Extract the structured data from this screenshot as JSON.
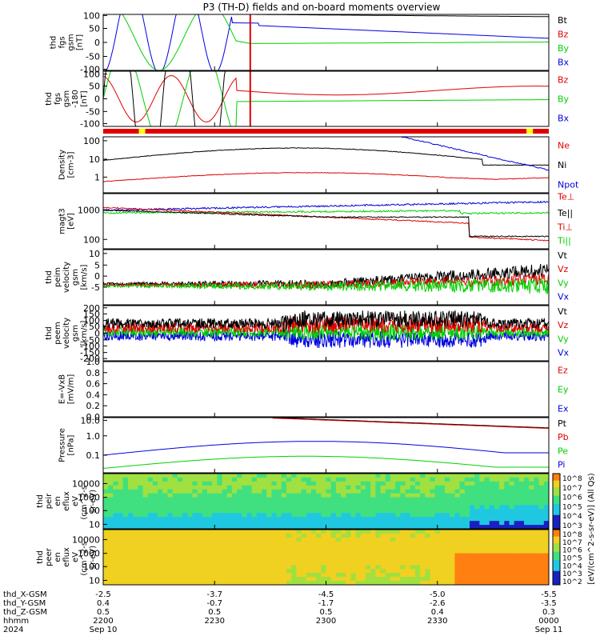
{
  "title": "P3 (TH-D) fields and on-board moments overview",
  "colors": {
    "black": "#000000",
    "red": "#e00000",
    "green": "#00d000",
    "blue": "#0000e0",
    "yellow": "#ffff00"
  },
  "chart_data": [
    {
      "type": "line",
      "id": "fgs_gsm",
      "ylabel_lines": [
        "thd",
        "fgs",
        "gsm",
        "[nT]"
      ],
      "ylim": [
        -100,
        100
      ],
      "yticks": [
        "100",
        "50",
        "0",
        "-50",
        "-100"
      ],
      "legend": [
        "Bt",
        "Bz",
        "By",
        "Bx"
      ],
      "legend_colors": [
        "#000000",
        "#e00000",
        "#00d000",
        "#0000e0"
      ]
    },
    {
      "type": "line",
      "id": "fgs_gsm_lim",
      "ylabel_lines": [
        "thd",
        "fgs",
        "gsm",
        "-180",
        "[nT]"
      ],
      "ylim": [
        -120,
        100
      ],
      "yticks": [
        "100",
        "50",
        "0",
        "-50",
        "-100"
      ],
      "legend": [
        "Bz",
        "By",
        "Bx"
      ],
      "legend_colors": [
        "#e00000",
        "#00d000",
        "#0000e0"
      ]
    },
    {
      "type": "line",
      "id": "density",
      "scale": "log",
      "ylabel_lines": [
        "Density",
        "[cm-3]"
      ],
      "ylim": [
        0.3,
        120
      ],
      "yticks": [
        "100",
        "10",
        "1"
      ],
      "legend": [
        "Ne",
        "Ni",
        "Npot"
      ],
      "legend_colors": [
        "#e00000",
        "#000000",
        "#0000e0"
      ]
    },
    {
      "type": "line",
      "id": "temperature",
      "scale": "log",
      "ylabel_lines": [
        "magt3",
        "[eV]"
      ],
      "ylim": [
        50,
        3000
      ],
      "yticks": [
        "1000",
        "100"
      ],
      "legend": [
        "Te⊥",
        "Te||",
        "Ti⊥",
        "Ti||"
      ],
      "legend_colors": [
        "#e00000",
        "#000000",
        "#e00000",
        "#00d000"
      ]
    },
    {
      "type": "line",
      "id": "peim_velocity",
      "ylabel_lines": [
        "thd",
        "peim",
        "velocity",
        "gsm",
        "[km/s]"
      ],
      "ylim": [
        -5,
        12
      ],
      "yticks": [
        "10",
        "5",
        "0",
        "-5"
      ],
      "legend": [
        "Vt",
        "Vz",
        "Vy",
        "Vx"
      ],
      "legend_colors": [
        "#000000",
        "#e00000",
        "#00d000",
        "#0000e0"
      ]
    },
    {
      "type": "line",
      "id": "peem_velocity",
      "ylabel_lines": [
        "thd",
        "peem",
        "velocity",
        "gsm",
        "[km/s]"
      ],
      "ylim": [
        -200,
        230
      ],
      "yticks": [
        "200",
        "150",
        "100",
        "50",
        "0",
        "-50",
        "-100",
        "-150",
        "-200"
      ],
      "legend": [
        "Vt",
        "Vz",
        "Vy",
        "Vx"
      ],
      "legend_colors": [
        "#000000",
        "#e00000",
        "#00d000",
        "#0000e0"
      ]
    },
    {
      "type": "line",
      "id": "efield",
      "ylabel_lines": [
        "E=-VxB",
        "[mV/m]"
      ],
      "ylim": [
        0,
        1
      ],
      "yticks": [
        "1.0",
        "0.8",
        "0.6",
        "0.4",
        "0.2",
        "0.0"
      ],
      "legend": [
        "Ez",
        "Ey",
        "Ex"
      ],
      "legend_colors": [
        "#e00000",
        "#00d000",
        "#0000e0"
      ]
    },
    {
      "type": "line",
      "id": "pressure",
      "scale": "log",
      "ylabel_lines": [
        "Pressure",
        "[nPa]"
      ],
      "ylim": [
        0.05,
        30
      ],
      "yticks": [
        "10.0",
        "1.0",
        "0.1"
      ],
      "legend": [
        "Pt",
        "Pb",
        "Pe",
        "Pi"
      ],
      "legend_colors": [
        "#000000",
        "#e00000",
        "#00d000",
        "#0000e0"
      ]
    },
    {
      "type": "heatmap",
      "id": "peir_eflux",
      "scale": "log",
      "ylabel_lines": [
        "thd",
        "peir",
        "en",
        "eflux",
        "eV",
        "(cm^2-s-",
        "sr-eV)"
      ],
      "yticks": [
        "10000",
        "1000",
        "100",
        "10"
      ]
    },
    {
      "type": "heatmap",
      "id": "peer_eflux",
      "scale": "log",
      "ylabel_lines": [
        "thd",
        "peer",
        "en",
        "eflux",
        "eV",
        "(cm^2-s-",
        "sr-eV)"
      ],
      "yticks": [
        "10000",
        "1000",
        "100",
        "10"
      ]
    }
  ],
  "colorbar_top": {
    "ticks": [
      "10^8",
      "10^7",
      "10^6",
      "10^5",
      "10^4",
      "10^3"
    ]
  },
  "colorbar_bottom": {
    "ticks": [
      "10^8",
      "10^7",
      "10^6",
      "10^5",
      "10^4",
      "10^3",
      "10^2"
    ]
  },
  "colorbar_label": "[eV/(cm^2-s-sr-eV)] (All Qs)",
  "time_axis": {
    "rows": [
      {
        "label": "thd_X-GSM",
        "values": [
          "-2.5",
          "-3.7",
          "-4.5",
          "-5.0",
          "-5.5"
        ]
      },
      {
        "label": "thd_Y-GSM",
        "values": [
          "0.4",
          "-0.7",
          "-1.7",
          "-2.6",
          "-3.5"
        ]
      },
      {
        "label": "thd_Z-GSM",
        "values": [
          "0.5",
          "0.5",
          "0.5",
          "0.4",
          "0.3"
        ]
      },
      {
        "label": "hhmm",
        "values": [
          "2200",
          "2230",
          "2300",
          "2330",
          "0000"
        ]
      },
      {
        "label": "2024",
        "values": [
          "Sep 10",
          "",
          "",
          "",
          "Sep 11"
        ]
      }
    ]
  }
}
